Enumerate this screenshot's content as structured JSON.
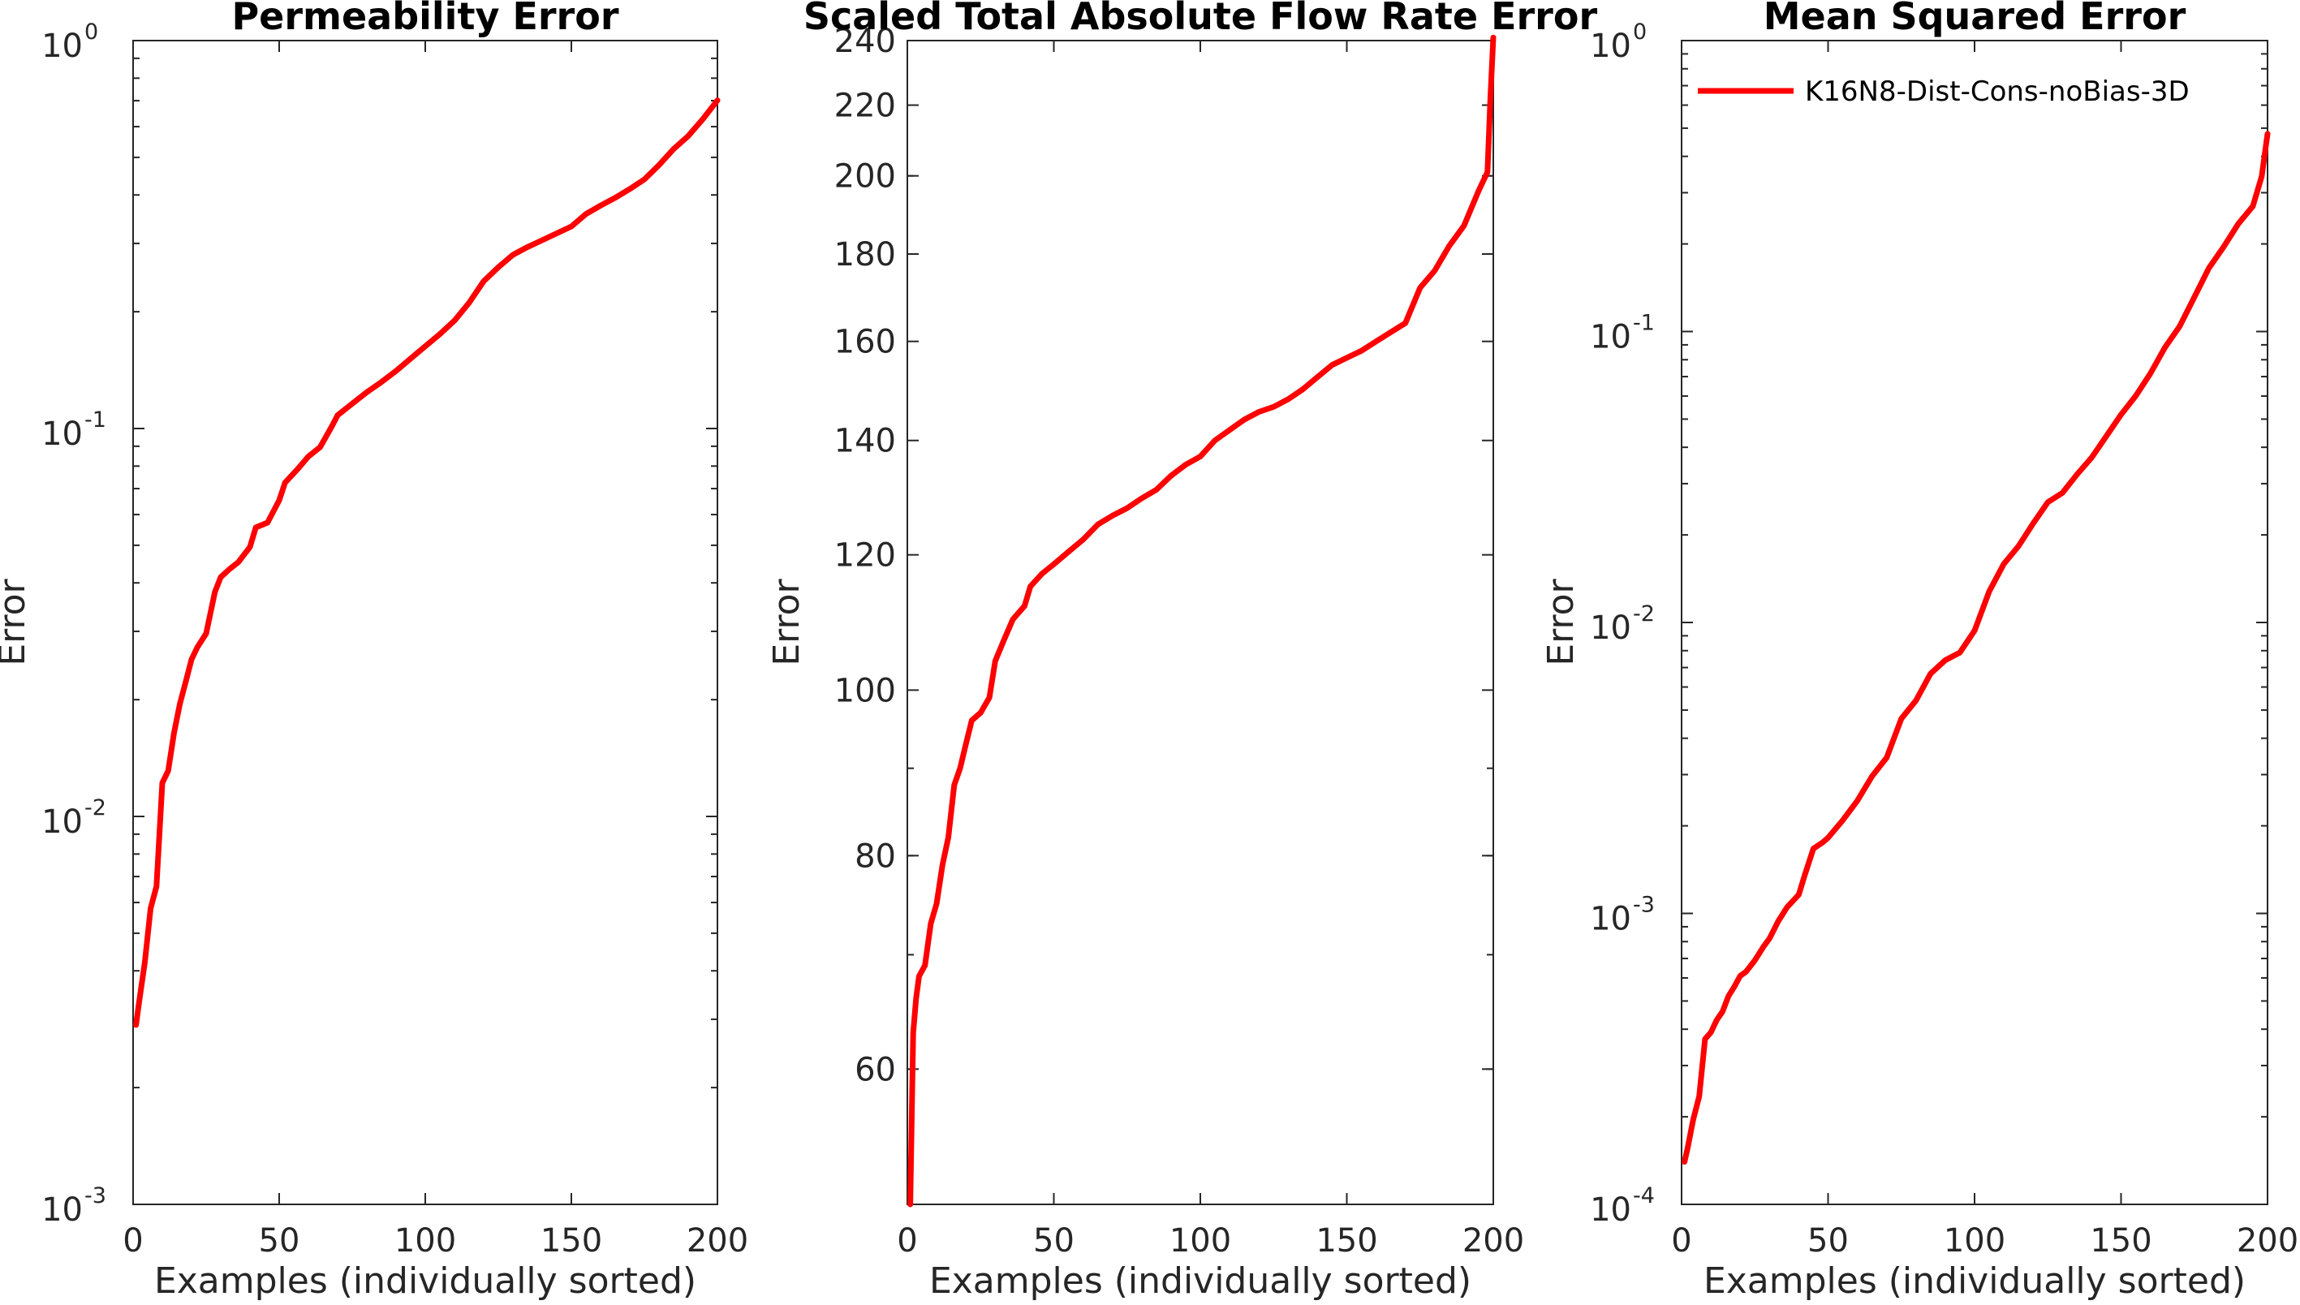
{
  "chart_data": [
    {
      "type": "line",
      "title": "Permeability Error",
      "xlabel": "Examples (individually sorted)",
      "ylabel": "Error",
      "xlim": [
        0,
        200
      ],
      "ylim": [
        0.001,
        1
      ],
      "yscale": "log",
      "xticks": [
        "0",
        "50",
        "100",
        "150",
        "200"
      ],
      "yticks": [
        {
          "base": "10",
          "exp": "-3"
        },
        {
          "base": "10",
          "exp": "-2"
        },
        {
          "base": "10",
          "exp": "-1"
        },
        {
          "base": "10",
          "exp": "0"
        }
      ],
      "grid": false,
      "series": [
        {
          "color": "#ff0000",
          "x": [
            1,
            2,
            4,
            6,
            8,
            10,
            12,
            14,
            16,
            18,
            20,
            22,
            25,
            28,
            30,
            33,
            36,
            40,
            42,
            46,
            50,
            52,
            56,
            60,
            64,
            68,
            70,
            75,
            80,
            85,
            90,
            95,
            100,
            105,
            110,
            115,
            120,
            125,
            130,
            135,
            140,
            145,
            150,
            155,
            160,
            165,
            170,
            175,
            180,
            185,
            190,
            195,
            200
          ],
          "y": [
            0.0029,
            0.0033,
            0.0042,
            0.0058,
            0.0066,
            0.0122,
            0.0131,
            0.0164,
            0.0195,
            0.0222,
            0.0254,
            0.0273,
            0.0296,
            0.0379,
            0.0414,
            0.0434,
            0.0452,
            0.0495,
            0.0556,
            0.0572,
            0.0653,
            0.0725,
            0.0781,
            0.0847,
            0.0895,
            0.1012,
            0.1082,
            0.1159,
            0.1241,
            0.1318,
            0.1407,
            0.1515,
            0.1629,
            0.1751,
            0.1897,
            0.2109,
            0.2397,
            0.2604,
            0.2803,
            0.2936,
            0.3058,
            0.3185,
            0.3317,
            0.3573,
            0.3755,
            0.3934,
            0.4144,
            0.4387,
            0.4777,
            0.5254,
            0.5675,
            0.6274,
            0.7014
          ]
        }
      ]
    },
    {
      "type": "line",
      "title": "Scaled Total Absolute Flow Rate Error",
      "xlabel": "Examples (individually sorted)",
      "ylabel": "Error",
      "xlim": [
        0,
        200
      ],
      "ylim": [
        50,
        240
      ],
      "yscale": "log",
      "xticks": [
        "0",
        "50",
        "100",
        "150",
        "200"
      ],
      "yticks": [
        "60",
        "80",
        "100",
        "120",
        "140",
        "160",
        "180",
        "200",
        "220",
        "240"
      ],
      "grid": false,
      "series": [
        {
          "color": "#ff0000",
          "x": [
            1,
            2,
            3,
            4,
            6,
            8,
            10,
            12,
            14,
            16,
            18,
            20,
            22,
            25,
            28,
            30,
            33,
            36,
            40,
            42,
            46,
            50,
            55,
            60,
            65,
            70,
            75,
            80,
            85,
            90,
            95,
            100,
            105,
            110,
            115,
            120,
            125,
            130,
            135,
            140,
            145,
            150,
            155,
            160,
            165,
            170,
            175,
            180,
            185,
            190,
            195,
            198,
            199,
            200
          ],
          "y": [
            50,
            63,
            66,
            68,
            69,
            73,
            75,
            79,
            82,
            88,
            90,
            93,
            96,
            97,
            99,
            104,
            107,
            110,
            112,
            115,
            117,
            118.5,
            120.5,
            122.5,
            125,
            126.5,
            127.8,
            129.5,
            131,
            133.5,
            135.5,
            137,
            140,
            142,
            144,
            145.5,
            146.5,
            148,
            150,
            152.5,
            155,
            156.5,
            158,
            160,
            162,
            164,
            172,
            176,
            182,
            187,
            196,
            201,
            222,
            241
          ]
        }
      ]
    },
    {
      "type": "line",
      "title": "Mean Squared Error",
      "xlabel": "Examples (individually sorted)",
      "ylabel": "Error",
      "xlim": [
        0,
        200
      ],
      "ylim": [
        0.0001,
        1
      ],
      "yscale": "log",
      "xticks": [
        "0",
        "50",
        "100",
        "150",
        "200"
      ],
      "yticks": [
        {
          "base": "10",
          "exp": "-4"
        },
        {
          "base": "10",
          "exp": "-3"
        },
        {
          "base": "10",
          "exp": "-2"
        },
        {
          "base": "10",
          "exp": "-1"
        },
        {
          "base": "10",
          "exp": "0"
        }
      ],
      "grid": false,
      "legend": {
        "position": "top-left",
        "entries": [
          "K16N8-Dist-Cons-noBias-3D"
        ]
      },
      "series": [
        {
          "name": "K16N8-Dist-Cons-noBias-3D",
          "color": "#ff0000",
          "x": [
            1,
            2,
            4,
            6,
            8,
            10,
            12,
            14,
            16,
            18,
            20,
            22,
            25,
            28,
            30,
            33,
            36,
            40,
            42,
            45,
            48,
            50,
            55,
            60,
            65,
            70,
            75,
            80,
            85,
            90,
            95,
            100,
            105,
            110,
            115,
            120,
            125,
            130,
            135,
            140,
            145,
            150,
            155,
            160,
            165,
            170,
            175,
            180,
            185,
            190,
            195,
            198,
            200
          ],
          "y": [
            0.00014,
            0.000155,
            0.000196,
            0.000235,
            0.00037,
            0.00039,
            0.00043,
            0.00046,
            0.00052,
            0.00056,
            0.00061,
            0.00063,
            0.00069,
            0.00077,
            0.00082,
            0.00094,
            0.00105,
            0.00116,
            0.00135,
            0.00167,
            0.00175,
            0.00182,
            0.00209,
            0.00244,
            0.00296,
            0.00343,
            0.00467,
            0.00539,
            0.00667,
            0.00742,
            0.00788,
            0.00937,
            0.0128,
            0.0159,
            0.0183,
            0.0219,
            0.0259,
            0.0279,
            0.0323,
            0.0369,
            0.0437,
            0.0518,
            0.0601,
            0.0717,
            0.0882,
            0.1042,
            0.1312,
            0.1654,
            0.1952,
            0.2344,
            0.2695,
            0.3412,
            0.4781
          ]
        }
      ]
    }
  ]
}
